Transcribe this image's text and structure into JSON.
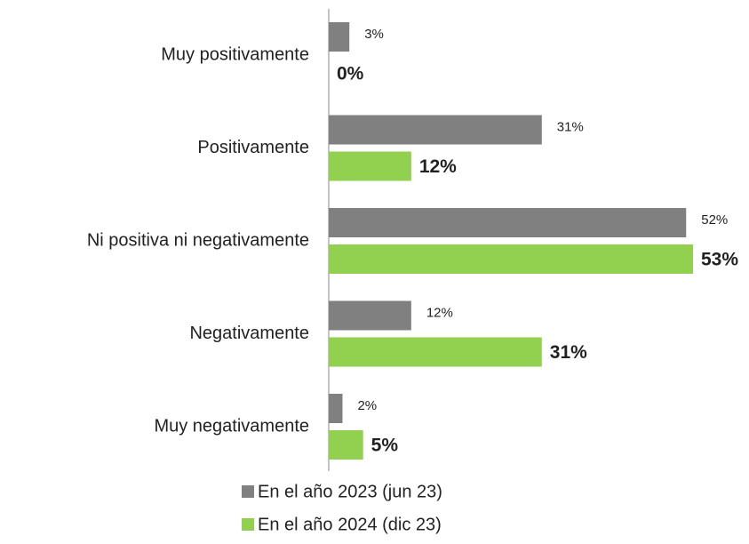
{
  "chart_data": {
    "type": "hbar",
    "categories": [
      "Muy positivamente",
      "Positivamente",
      "Ni positiva ni negativamente",
      "Negativamente",
      "Muy negativamente"
    ],
    "series": [
      {
        "name": "En el año 2023 (jun 23)",
        "color": "#808080",
        "values": [
          3,
          31,
          52,
          12,
          2
        ],
        "value_labels": [
          "3%",
          "31%",
          "52%",
          "12%",
          "2%"
        ]
      },
      {
        "name": "En el año 2024 (dic 23)",
        "color": "#92d050",
        "values": [
          0,
          12,
          53,
          31,
          5
        ],
        "value_labels": [
          "0%",
          "12%",
          "53%",
          "31%",
          "5%"
        ]
      }
    ]
  }
}
